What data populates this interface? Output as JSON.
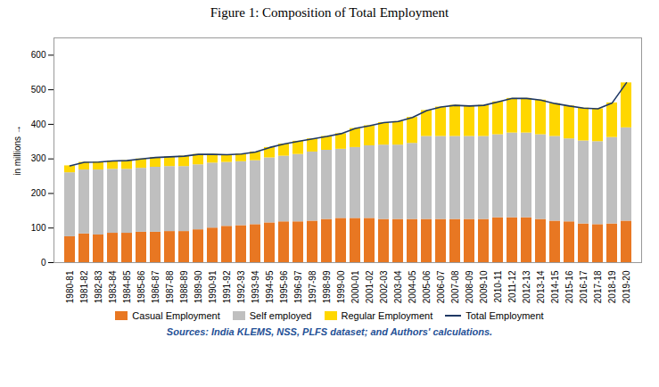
{
  "chart_data": {
    "type": "bar",
    "stacked": true,
    "title": "Figure 1:  Composition of Total Employment",
    "ylabel": "in millions",
    "source": "Sources: India KLEMS, NSS, PLFS dataset; and Authors' calculations.",
    "categories": [
      "1980-81",
      "1981-82",
      "1982-83",
      "1983-84",
      "1984-85",
      "1985-86",
      "1986-87",
      "1987-88",
      "1988-89",
      "1989-90",
      "1990-91",
      "1991-92",
      "1992-93",
      "1993-94",
      "1994-95",
      "1995-96",
      "1996-97",
      "1997-98",
      "1998-99",
      "1999-00",
      "2000-01",
      "2001-02",
      "2002-03",
      "2003-04",
      "2004-05",
      "2005-06",
      "2006-07",
      "2007-08",
      "2008-09",
      "2009-10",
      "2010-11",
      "2011-12",
      "2012-13",
      "2013-14",
      "2014-15",
      "2015-16",
      "2016-17",
      "2017-18",
      "2018-19",
      "2019-20"
    ],
    "series": [
      {
        "name": "Casual Employment",
        "type": "bar",
        "color": "#E87722",
        "values": [
          75,
          83,
          80,
          85,
          85,
          88,
          88,
          90,
          90,
          95,
          100,
          105,
          107,
          110,
          115,
          118,
          118,
          120,
          125,
          128,
          128,
          128,
          125,
          125,
          125,
          125,
          125,
          125,
          125,
          125,
          130,
          130,
          130,
          125,
          120,
          118,
          112,
          110,
          112,
          120
        ]
      },
      {
        "name": "Self employed",
        "type": "bar",
        "color": "#BFBFBF",
        "values": [
          185,
          185,
          188,
          185,
          185,
          185,
          188,
          188,
          188,
          188,
          188,
          185,
          185,
          185,
          188,
          190,
          195,
          200,
          200,
          200,
          205,
          210,
          215,
          215,
          220,
          240,
          240,
          240,
          240,
          240,
          240,
          245,
          245,
          245,
          245,
          240,
          240,
          240,
          250,
          270
        ]
      },
      {
        "name": "Regular Employment",
        "type": "bar",
        "color": "#FFD700",
        "values": [
          20,
          22,
          23,
          24,
          25,
          27,
          28,
          28,
          30,
          30,
          25,
          22,
          22,
          25,
          30,
          35,
          38,
          38,
          40,
          45,
          55,
          58,
          65,
          68,
          75,
          75,
          85,
          90,
          88,
          90,
          95,
          100,
          100,
          100,
          95,
          95,
          95,
          95,
          100,
          130
        ]
      },
      {
        "name": "Total Employment",
        "type": "line",
        "color": "#1F3864",
        "values": [
          280,
          290,
          291,
          294,
          295,
          300,
          304,
          306,
          308,
          313,
          313,
          312,
          314,
          320,
          333,
          343,
          351,
          358,
          365,
          373,
          388,
          396,
          405,
          408,
          420,
          440,
          450,
          455,
          453,
          455,
          465,
          475,
          475,
          470,
          460,
          453,
          447,
          445,
          462,
          520
        ]
      }
    ],
    "ylim": [
      0,
      650
    ],
    "yticks": [
      0,
      100,
      200,
      300,
      400,
      500,
      600
    ],
    "grid": false,
    "legend": "bottom"
  }
}
